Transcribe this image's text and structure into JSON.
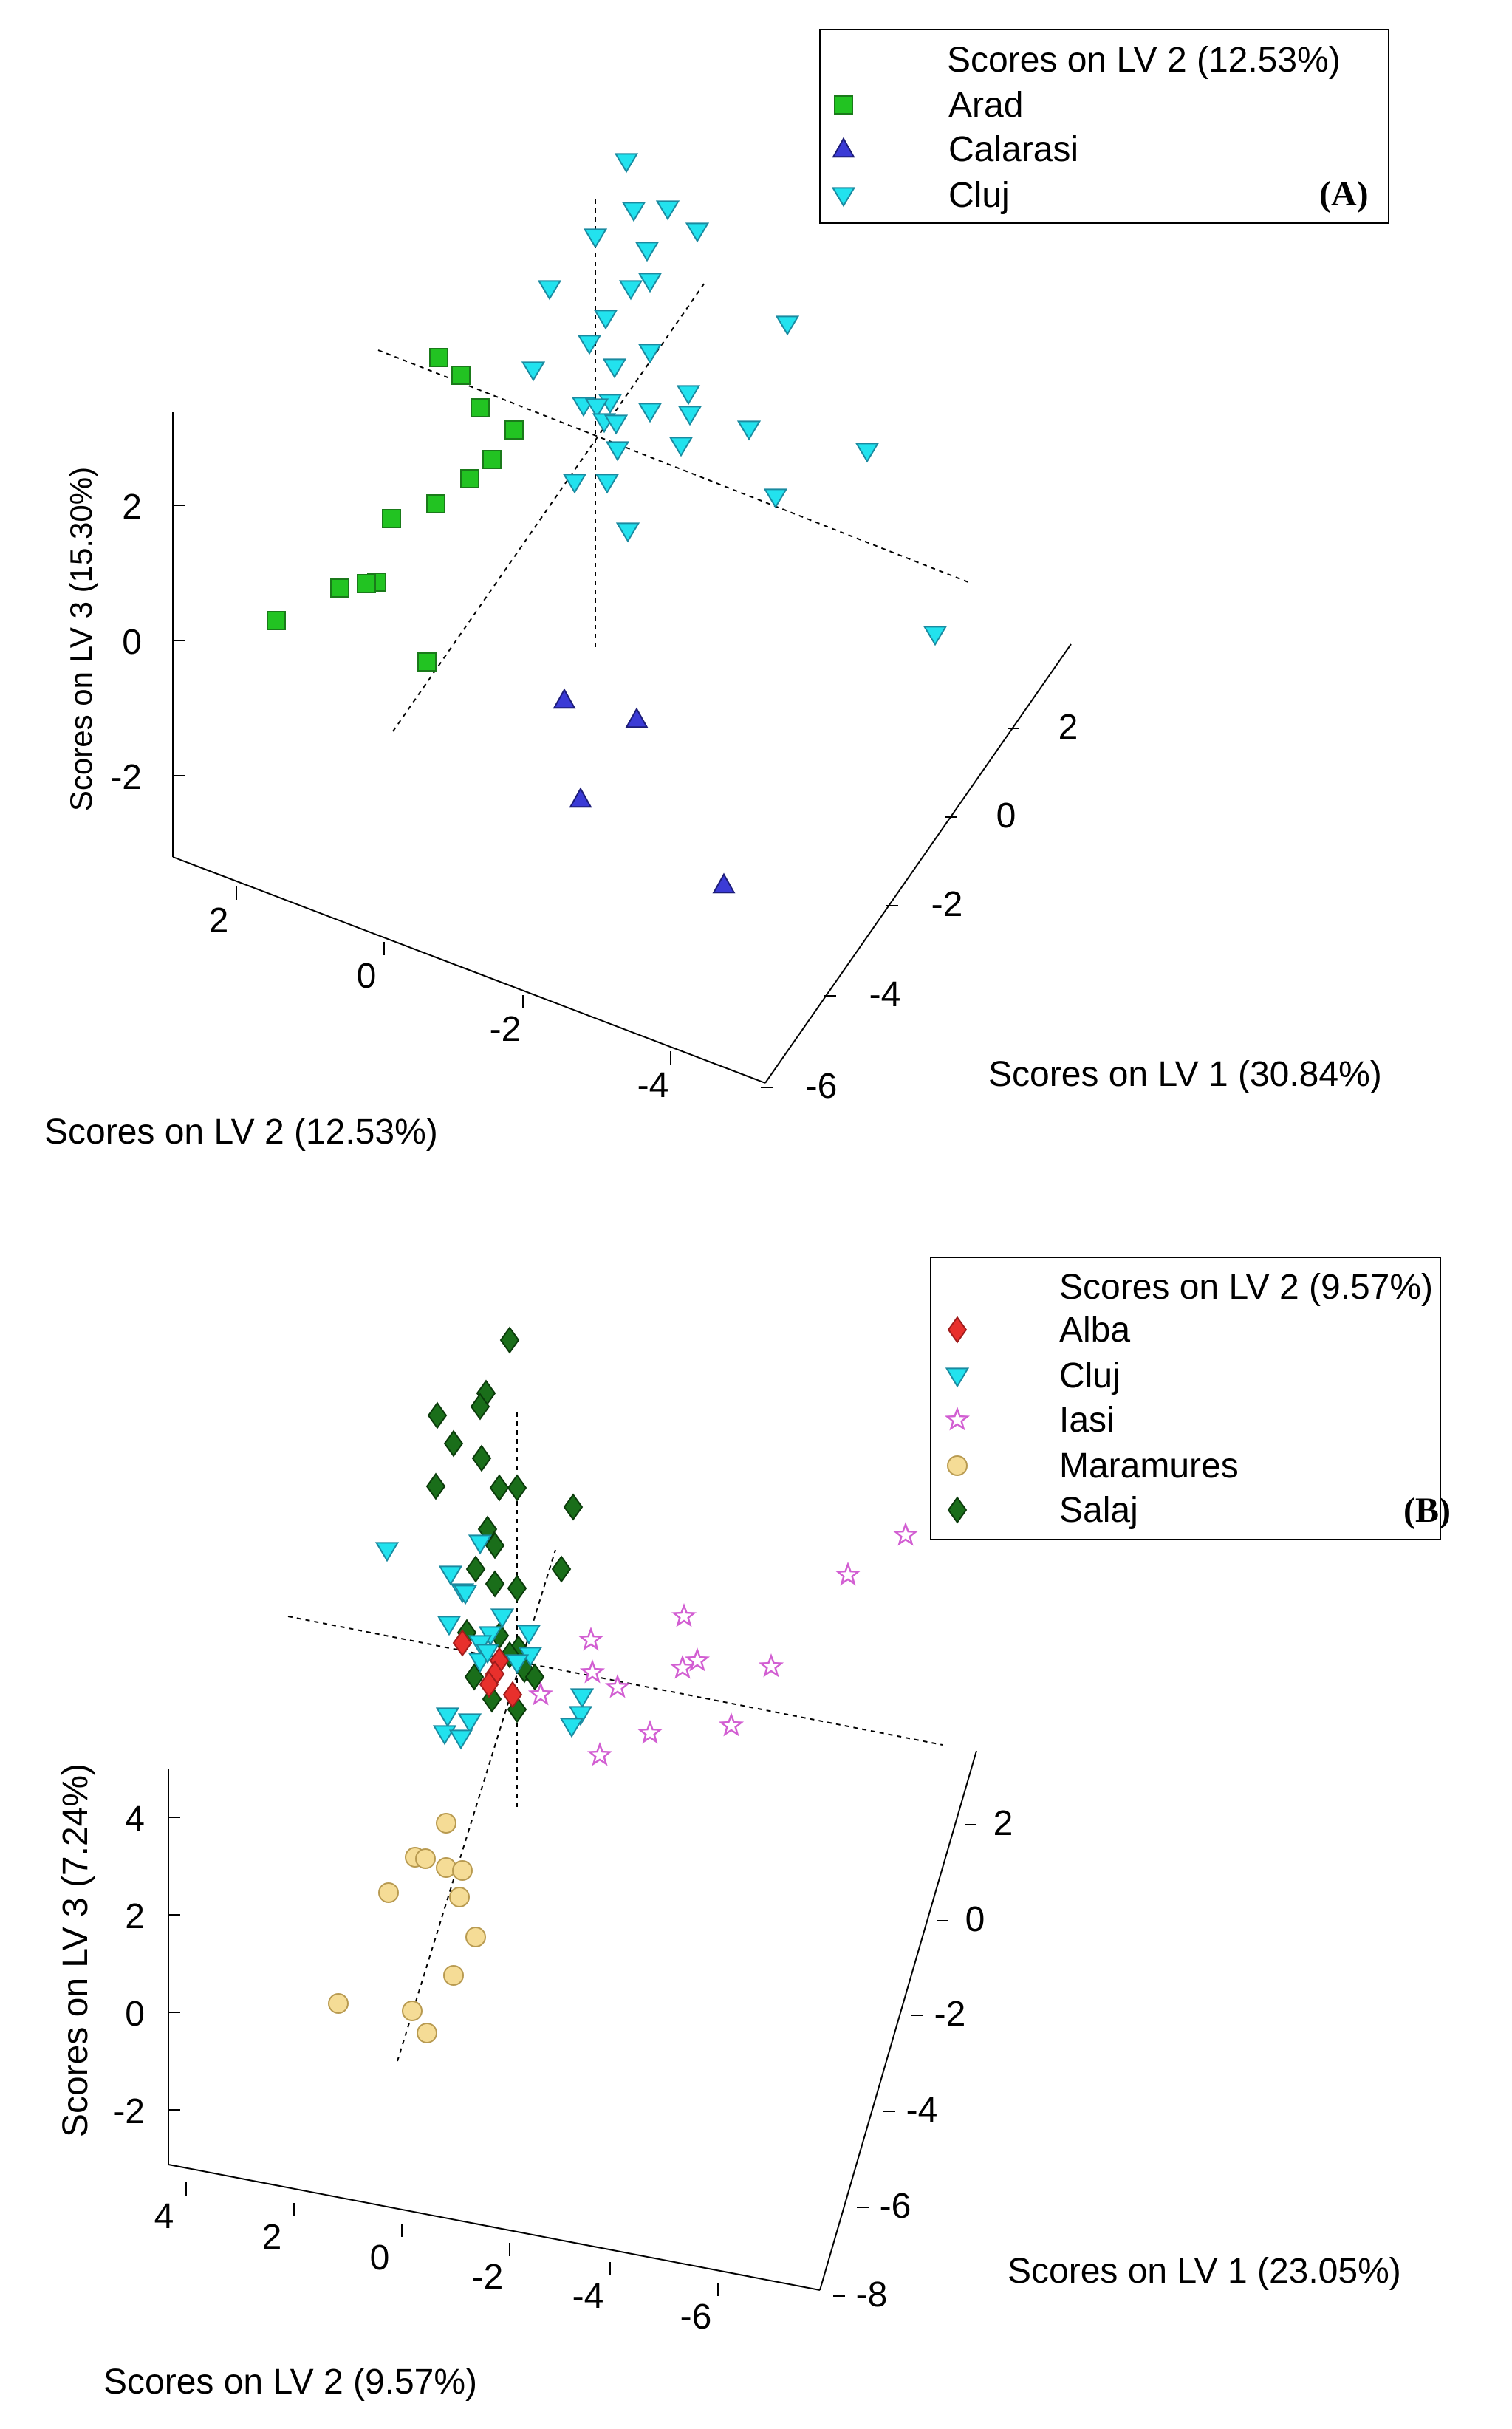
{
  "chart_data": [
    {
      "type": "scatter",
      "panel_label": "(A)",
      "legend": {
        "title": "Scores on LV 2 (12.53%)",
        "placement": "top-right",
        "entries": [
          {
            "name": "Arad",
            "marker": "square",
            "color": "#22c322"
          },
          {
            "name": "Calarasi",
            "marker": "triangle-up",
            "color": "#3b3bd6"
          },
          {
            "name": "Cluj",
            "marker": "triangle-down",
            "color": "#22e2ee"
          }
        ]
      },
      "axes": {
        "x": {
          "label": "Scores on LV 1 (30.84%)",
          "ticks": [
            "2",
            "0",
            "-2",
            "-4",
            "-6"
          ]
        },
        "y": {
          "label": "Scores on LV 2 (12.53%)",
          "ticks": [
            "2",
            "0",
            "-2",
            "-4"
          ]
        },
        "z": {
          "label": "Scores on LV 3 (15.30%)",
          "ticks": [
            "2",
            "0",
            "-2"
          ]
        }
      },
      "series": [
        {
          "name": "Arad",
          "points": 13
        },
        {
          "name": "Calarasi",
          "points": 4
        },
        {
          "name": "Cluj",
          "points": 32
        }
      ]
    },
    {
      "type": "scatter",
      "panel_label": "(B)",
      "legend": {
        "title": "Scores on LV 2 (9.57%)",
        "placement": "top-right",
        "entries": [
          {
            "name": "Alba",
            "marker": "diamond",
            "color": "#e8302c"
          },
          {
            "name": "Cluj",
            "marker": "triangle-down",
            "color": "#22e2ee"
          },
          {
            "name": "Iasi",
            "marker": "star",
            "color": "#d25ed2"
          },
          {
            "name": "Maramures",
            "marker": "circle",
            "color": "#f5dc96"
          },
          {
            "name": "Salaj",
            "marker": "diamond",
            "color": "#1a6e1a"
          }
        ]
      },
      "axes": {
        "x": {
          "label": "Scores on LV 1 (23.05%)",
          "ticks": [
            "2",
            "0",
            "-2",
            "-4",
            "-6",
            "-8"
          ]
        },
        "y": {
          "label": "Scores on LV 2 (9.57%)",
          "ticks": [
            "4",
            "2",
            "0",
            "-2",
            "-4",
            "-6"
          ]
        },
        "z": {
          "label": "Scores on LV 3 (7.24%)",
          "ticks": [
            "4",
            "2",
            "0",
            "-2"
          ]
        }
      },
      "series": [
        {
          "name": "Alba",
          "points": 5
        },
        {
          "name": "Cluj",
          "points": 21
        },
        {
          "name": "Iasi",
          "points": 13
        },
        {
          "name": "Maramures",
          "points": 12
        },
        {
          "name": "Salaj",
          "points": 25
        }
      ]
    }
  ]
}
